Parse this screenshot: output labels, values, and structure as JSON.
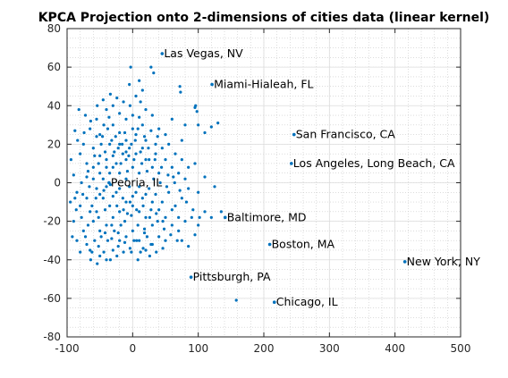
{
  "chart_data": {
    "type": "scatter",
    "title": "KPCA Projection onto 2-dimensions of cities data (linear kernel)",
    "xlabel": "",
    "ylabel": "",
    "xlim": [
      -100,
      500
    ],
    "ylim": [
      -80,
      80
    ],
    "xticks": [
      -100,
      0,
      100,
      200,
      300,
      400,
      500
    ],
    "yticks": [
      -80,
      -60,
      -40,
      -20,
      0,
      20,
      40,
      60,
      80
    ],
    "grid": true,
    "minor_grid": true,
    "marker_color": "#0072BD",
    "annotations": [
      {
        "label": "Las Vegas, NV",
        "x": 45,
        "y": 67
      },
      {
        "label": "Miami-Hialeah, FL",
        "x": 121,
        "y": 51
      },
      {
        "label": "San Francisco, CA",
        "x": 246,
        "y": 25
      },
      {
        "label": "Los Angeles, Long Beach, CA",
        "x": 242,
        "y": 10
      },
      {
        "label": "Peoria, IL",
        "x": -36,
        "y": 0
      },
      {
        "label": "Baltimore, MD",
        "x": 141,
        "y": -18
      },
      {
        "label": "Boston, MA",
        "x": 209,
        "y": -32
      },
      {
        "label": "New York, NY",
        "x": 415,
        "y": -41
      },
      {
        "label": "Pittsburgh, PA",
        "x": 89,
        "y": -49
      },
      {
        "label": "Chicago, IL",
        "x": 216,
        "y": -62
      }
    ],
    "points": [
      [
        45,
        67
      ],
      [
        121,
        51
      ],
      [
        246,
        25
      ],
      [
        242,
        10
      ],
      [
        -36,
        0
      ],
      [
        141,
        -18
      ],
      [
        209,
        -32
      ],
      [
        415,
        -41
      ],
      [
        89,
        -49
      ],
      [
        216,
        -62
      ],
      [
        158,
        -61
      ],
      [
        -3,
        60
      ],
      [
        32,
        57
      ],
      [
        28,
        60
      ],
      [
        10,
        53
      ],
      [
        15,
        48
      ],
      [
        -5,
        51
      ],
      [
        72,
        50
      ],
      [
        73,
        47
      ],
      [
        95,
        39
      ],
      [
        96,
        40
      ],
      [
        98,
        37
      ],
      [
        5,
        45
      ],
      [
        12,
        42
      ],
      [
        -82,
        38
      ],
      [
        -72,
        35
      ],
      [
        -45,
        43
      ],
      [
        -40,
        38
      ],
      [
        -30,
        40
      ],
      [
        -20,
        36
      ],
      [
        -55,
        33
      ],
      [
        -65,
        28
      ],
      [
        -88,
        27
      ],
      [
        -50,
        25
      ],
      [
        -30,
        30
      ],
      [
        -10,
        33
      ],
      [
        0,
        35
      ],
      [
        15,
        30
      ],
      [
        30,
        35
      ],
      [
        40,
        28
      ],
      [
        60,
        33
      ],
      [
        80,
        30
      ],
      [
        100,
        30
      ],
      [
        120,
        29
      ],
      [
        130,
        31
      ],
      [
        110,
        26
      ],
      [
        75,
        22
      ],
      [
        50,
        25
      ],
      [
        35,
        20
      ],
      [
        20,
        22
      ],
      [
        5,
        25
      ],
      [
        -10,
        22
      ],
      [
        -20,
        26
      ],
      [
        -35,
        20
      ],
      [
        -55,
        24
      ],
      [
        -60,
        18
      ],
      [
        -75,
        20
      ],
      [
        -80,
        15
      ],
      [
        -70,
        10
      ],
      [
        -90,
        4
      ],
      [
        -85,
        -5
      ],
      [
        -95,
        -10
      ],
      [
        -80,
        -12
      ],
      [
        -70,
        -8
      ],
      [
        -65,
        -15
      ],
      [
        -60,
        -20
      ],
      [
        -75,
        -25
      ],
      [
        -85,
        -30
      ],
      [
        -70,
        -32
      ],
      [
        -65,
        -35
      ],
      [
        -50,
        -38
      ],
      [
        -40,
        -40
      ],
      [
        -30,
        -35
      ],
      [
        -20,
        -30
      ],
      [
        -10,
        -28
      ],
      [
        0,
        -25
      ],
      [
        10,
        -30
      ],
      [
        20,
        -35
      ],
      [
        30,
        -32
      ],
      [
        40,
        -28
      ],
      [
        50,
        -30
      ],
      [
        60,
        -22
      ],
      [
        70,
        -25
      ],
      [
        80,
        -20
      ],
      [
        90,
        -18
      ],
      [
        100,
        -22
      ],
      [
        110,
        -15
      ],
      [
        120,
        -18
      ],
      [
        135,
        -15
      ],
      [
        75,
        -30
      ],
      [
        85,
        -33
      ],
      [
        95,
        -27
      ],
      [
        30,
        -22
      ],
      [
        20,
        -18
      ],
      [
        10,
        -15
      ],
      [
        0,
        -12
      ],
      [
        -10,
        -10
      ],
      [
        -20,
        -15
      ],
      [
        -30,
        -18
      ],
      [
        -40,
        -22
      ],
      [
        -50,
        -25
      ],
      [
        -55,
        -15
      ],
      [
        -45,
        -8
      ],
      [
        -35,
        -12
      ],
      [
        -25,
        -5
      ],
      [
        -15,
        -8
      ],
      [
        -5,
        -2
      ],
      [
        5,
        -5
      ],
      [
        15,
        -8
      ],
      [
        25,
        -3
      ],
      [
        35,
        -6
      ],
      [
        45,
        -10
      ],
      [
        55,
        -5
      ],
      [
        65,
        -12
      ],
      [
        75,
        -8
      ],
      [
        85,
        -3
      ],
      [
        100,
        -5
      ],
      [
        110,
        3
      ],
      [
        125,
        -2
      ],
      [
        80,
        2
      ],
      [
        70,
        5
      ],
      [
        60,
        8
      ],
      [
        50,
        12
      ],
      [
        40,
        5
      ],
      [
        30,
        8
      ],
      [
        20,
        12
      ],
      [
        10,
        5
      ],
      [
        0,
        8
      ],
      [
        -10,
        12
      ],
      [
        -20,
        5
      ],
      [
        -30,
        8
      ],
      [
        -40,
        12
      ],
      [
        -50,
        5
      ],
      [
        -60,
        8
      ],
      [
        -70,
        3
      ],
      [
        -55,
        -3
      ],
      [
        -45,
        2
      ],
      [
        -35,
        5
      ],
      [
        -25,
        10
      ],
      [
        -15,
        15
      ],
      [
        -5,
        18
      ],
      [
        5,
        15
      ],
      [
        15,
        18
      ],
      [
        25,
        12
      ],
      [
        35,
        15
      ],
      [
        45,
        18
      ],
      [
        55,
        20
      ],
      [
        65,
        15
      ],
      [
        75,
        12
      ],
      [
        85,
        8
      ],
      [
        95,
        10
      ],
      [
        -60,
        2
      ],
      [
        -50,
        -6
      ],
      [
        -40,
        -2
      ],
      [
        -30,
        -7
      ],
      [
        -20,
        -3
      ],
      [
        -10,
        2
      ],
      [
        0,
        -7
      ],
      [
        10,
        -2
      ],
      [
        20,
        -6
      ],
      [
        30,
        -10
      ],
      [
        40,
        -14
      ],
      [
        50,
        -18
      ],
      [
        60,
        -14
      ],
      [
        70,
        -18
      ],
      [
        -52,
        10
      ],
      [
        -42,
        16
      ],
      [
        -32,
        22
      ],
      [
        -22,
        18
      ],
      [
        -12,
        26
      ],
      [
        -2,
        20
      ],
      [
        8,
        28
      ],
      [
        18,
        24
      ],
      [
        28,
        27
      ],
      [
        38,
        24
      ],
      [
        -62,
        -12
      ],
      [
        -52,
        -18
      ],
      [
        -42,
        -14
      ],
      [
        -32,
        -22
      ],
      [
        -22,
        -26
      ],
      [
        -12,
        -20
      ],
      [
        -2,
        -17
      ],
      [
        8,
        -22
      ],
      [
        18,
        -26
      ],
      [
        28,
        -14
      ],
      [
        38,
        -20
      ],
      [
        48,
        -24
      ],
      [
        58,
        -27
      ],
      [
        68,
        -30
      ],
      [
        -48,
        -28
      ],
      [
        -38,
        -30
      ],
      [
        -28,
        -25
      ],
      [
        -18,
        -22
      ],
      [
        -8,
        -16
      ],
      [
        2,
        -30
      ],
      [
        12,
        -36
      ],
      [
        22,
        -28
      ],
      [
        -58,
        -30
      ],
      [
        -68,
        -22
      ],
      [
        -78,
        -18
      ],
      [
        -88,
        -8
      ],
      [
        -78,
        0
      ],
      [
        -68,
        6
      ],
      [
        -58,
        14
      ],
      [
        -48,
        20
      ],
      [
        -38,
        28
      ],
      [
        -28,
        16
      ],
      [
        -18,
        10
      ],
      [
        -8,
        6
      ],
      [
        2,
        12
      ],
      [
        12,
        16
      ],
      [
        22,
        6
      ],
      [
        32,
        2
      ],
      [
        42,
        0
      ],
      [
        52,
        -2
      ],
      [
        62,
        3
      ],
      [
        72,
        -4
      ],
      [
        82,
        -10
      ],
      [
        92,
        -14
      ],
      [
        102,
        -18
      ],
      [
        -46,
        24
      ],
      [
        -36,
        34
      ],
      [
        -26,
        24
      ],
      [
        -16,
        20
      ],
      [
        -6,
        14
      ],
      [
        4,
        22
      ],
      [
        14,
        10
      ],
      [
        24,
        18
      ],
      [
        34,
        12
      ],
      [
        44,
        8
      ],
      [
        54,
        4
      ],
      [
        64,
        0
      ],
      [
        -44,
        -4
      ],
      [
        -34,
        -1
      ],
      [
        -24,
        -12
      ],
      [
        -14,
        -14
      ],
      [
        -4,
        -10
      ],
      [
        6,
        -14
      ],
      [
        16,
        -12
      ],
      [
        26,
        -18
      ],
      [
        36,
        -16
      ],
      [
        46,
        -20
      ],
      [
        -56,
        -8
      ],
      [
        -66,
        -2
      ],
      [
        -76,
        -6
      ],
      [
        -86,
        -14
      ],
      [
        -72,
        -28
      ],
      [
        -62,
        -36
      ],
      [
        -52,
        -33
      ],
      [
        -42,
        -26
      ],
      [
        -32,
        -29
      ],
      [
        -22,
        -33
      ],
      [
        -12,
        -31
      ],
      [
        -2,
        -36
      ],
      [
        8,
        -40
      ],
      [
        18,
        -24
      ],
      [
        28,
        -32
      ],
      [
        -50,
        14
      ],
      [
        -40,
        8
      ],
      [
        -30,
        14
      ],
      [
        -20,
        20
      ],
      [
        -10,
        16
      ],
      [
        0,
        28
      ],
      [
        10,
        34
      ],
      [
        20,
        38
      ],
      [
        -4,
        40
      ],
      [
        -14,
        42
      ],
      [
        -24,
        44
      ],
      [
        -34,
        46
      ],
      [
        -44,
        30
      ],
      [
        -54,
        40
      ],
      [
        -64,
        32
      ],
      [
        -74,
        26
      ],
      [
        -84,
        22
      ],
      [
        -94,
        12
      ],
      [
        -90,
        -20
      ],
      [
        -92,
        -28
      ],
      [
        -80,
        -36
      ],
      [
        -64,
        -40
      ],
      [
        -54,
        -42
      ],
      [
        -44,
        -36
      ],
      [
        -34,
        -40
      ],
      [
        -24,
        -38
      ],
      [
        -14,
        -36
      ],
      [
        -4,
        -34
      ],
      [
        6,
        -30
      ],
      [
        16,
        -34
      ],
      [
        26,
        -38
      ],
      [
        36,
        -36
      ],
      [
        46,
        -34
      ]
    ]
  }
}
